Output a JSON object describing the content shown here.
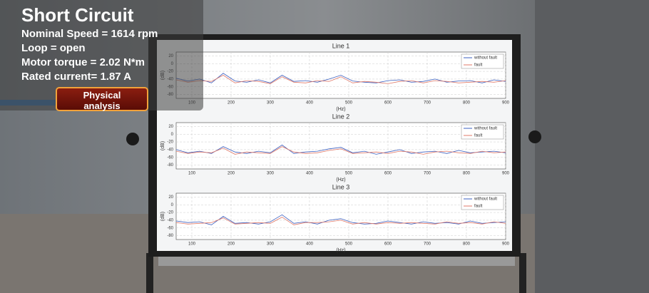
{
  "overlay": {
    "title": "Short Circuit",
    "lines": [
      "Nominal Speed = 1614 rpm",
      "Loop = open",
      "Motor torque = 2.02 N*m",
      "Rated current= 1.87 A"
    ],
    "button": "Physical analysis"
  },
  "chart_data": [
    {
      "type": "line",
      "title": "Line 1",
      "xlabel": "(Hz)",
      "ylabel": "(dB)",
      "x": [
        60,
        90,
        120,
        150,
        180,
        210,
        240,
        270,
        300,
        330,
        360,
        390,
        420,
        450,
        480,
        510,
        540,
        570,
        600,
        630,
        660,
        690,
        720,
        750,
        780,
        810,
        840,
        870,
        900
      ],
      "xlim": [
        60,
        900
      ],
      "xticks": [
        100,
        200,
        300,
        400,
        500,
        600,
        700,
        800,
        900
      ],
      "ylim": [
        -90,
        30
      ],
      "yticks": [
        20,
        0,
        -20,
        -40,
        -60,
        -80
      ],
      "grid": true,
      "legend": "upper right",
      "series": [
        {
          "name": "without fault",
          "color": "#3b5fc0",
          "values": [
            -38,
            -45,
            -40,
            -50,
            -25,
            -45,
            -48,
            -42,
            -50,
            -30,
            -46,
            -44,
            -48,
            -40,
            -30,
            -45,
            -48,
            -50,
            -44,
            -42,
            -48,
            -46,
            -40,
            -48,
            -45,
            -44,
            -50,
            -42,
            -46
          ]
        },
        {
          "name": "fault",
          "color": "#e07a6a",
          "values": [
            -42,
            -48,
            -44,
            -46,
            -30,
            -50,
            -44,
            -46,
            -52,
            -34,
            -48,
            -50,
            -44,
            -46,
            -34,
            -50,
            -46,
            -48,
            -52,
            -46,
            -44,
            -50,
            -44,
            -46,
            -50,
            -48,
            -46,
            -48,
            -44
          ]
        }
      ]
    },
    {
      "type": "line",
      "title": "Line 2",
      "xlabel": "(Hz)",
      "ylabel": "(dB)",
      "x": [
        60,
        90,
        120,
        150,
        180,
        210,
        240,
        270,
        300,
        330,
        360,
        390,
        420,
        450,
        480,
        510,
        540,
        570,
        600,
        630,
        660,
        690,
        720,
        750,
        780,
        810,
        840,
        870,
        900
      ],
      "xlim": [
        60,
        900
      ],
      "xticks": [
        100,
        200,
        300,
        400,
        500,
        600,
        700,
        800,
        900
      ],
      "ylim": [
        -90,
        30
      ],
      "yticks": [
        20,
        0,
        -20,
        -40,
        -60,
        -80
      ],
      "grid": true,
      "legend": "upper right",
      "series": [
        {
          "name": "without fault",
          "color": "#3b5fc0",
          "values": [
            -40,
            -48,
            -44,
            -50,
            -32,
            -46,
            -50,
            -44,
            -48,
            -28,
            -50,
            -46,
            -44,
            -38,
            -34,
            -48,
            -44,
            -52,
            -46,
            -40,
            -50,
            -46,
            -44,
            -50,
            -42,
            -48,
            -46,
            -44,
            -48
          ]
        },
        {
          "name": "fault",
          "color": "#e07a6a",
          "values": [
            -44,
            -50,
            -46,
            -48,
            -36,
            -52,
            -46,
            -48,
            -50,
            -32,
            -46,
            -50,
            -48,
            -42,
            -38,
            -50,
            -48,
            -46,
            -50,
            -44,
            -46,
            -52,
            -46,
            -44,
            -48,
            -50,
            -44,
            -48,
            -46
          ]
        }
      ]
    },
    {
      "type": "line",
      "title": "Line 3",
      "xlabel": "(Hz)",
      "ylabel": "(dB)",
      "x": [
        60,
        90,
        120,
        150,
        180,
        210,
        240,
        270,
        300,
        330,
        360,
        390,
        420,
        450,
        480,
        510,
        540,
        570,
        600,
        630,
        660,
        690,
        720,
        750,
        780,
        810,
        840,
        870,
        900
      ],
      "xlim": [
        60,
        900
      ],
      "xticks": [
        100,
        200,
        300,
        400,
        500,
        600,
        700,
        800,
        900
      ],
      "ylim": [
        -90,
        30
      ],
      "yticks": [
        20,
        0,
        -20,
        -40,
        -60,
        -80
      ],
      "grid": true,
      "legend": "upper right",
      "series": [
        {
          "name": "without fault",
          "color": "#3b5fc0",
          "values": [
            -42,
            -46,
            -44,
            -52,
            -30,
            -48,
            -46,
            -50,
            -44,
            -26,
            -48,
            -44,
            -50,
            -40,
            -36,
            -46,
            -50,
            -48,
            -42,
            -46,
            -50,
            -44,
            -48,
            -46,
            -50,
            -42,
            -48,
            -46,
            -44
          ]
        },
        {
          "name": "fault",
          "color": "#e07a6a",
          "values": [
            -46,
            -50,
            -48,
            -46,
            -34,
            -50,
            -48,
            -46,
            -48,
            -32,
            -52,
            -46,
            -46,
            -44,
            -40,
            -50,
            -46,
            -50,
            -46,
            -48,
            -46,
            -48,
            -50,
            -44,
            -48,
            -46,
            -50,
            -44,
            -48
          ]
        }
      ]
    }
  ]
}
